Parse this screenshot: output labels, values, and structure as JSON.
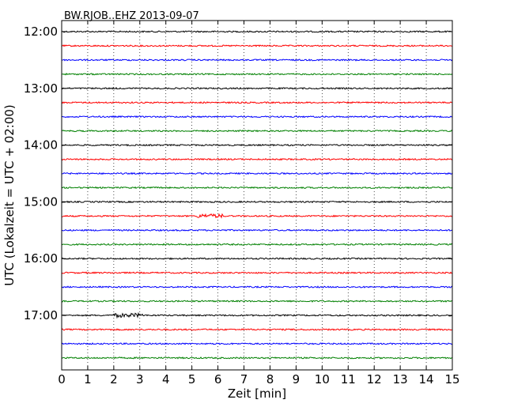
{
  "chart_data": {
    "type": "line",
    "title": "BW.RJOB..EHZ 2013-09-07",
    "xlabel": "Zeit  [min]",
    "ylabel": "UTC (Lokalzeit = UTC + 02:00)",
    "xlim": [
      0,
      15
    ],
    "x_ticks": [
      0,
      1,
      2,
      3,
      4,
      5,
      6,
      7,
      8,
      9,
      10,
      11,
      12,
      13,
      14,
      15
    ],
    "x_tick_labels": [
      "0",
      "1",
      "2",
      "3",
      "4",
      "5",
      "6",
      "7",
      "8",
      "9",
      "10",
      "11",
      "12",
      "13",
      "14",
      "15"
    ],
    "y_tick_labels": [
      "12:00",
      "13:00",
      "14:00",
      "15:00",
      "16:00",
      "17:00"
    ],
    "trace_interval_min": 15,
    "time_range": [
      "12:00",
      "18:00"
    ],
    "grid": "vertical dotted lines at each minute",
    "colors": [
      "#000000",
      "#ff0000",
      "#0000ff",
      "#008000"
    ],
    "traces": [
      {
        "start": "12:00",
        "color": "#000000"
      },
      {
        "start": "12:15",
        "color": "#ff0000"
      },
      {
        "start": "12:30",
        "color": "#0000ff"
      },
      {
        "start": "12:45",
        "color": "#008000"
      },
      {
        "start": "13:00",
        "color": "#000000"
      },
      {
        "start": "13:15",
        "color": "#ff0000"
      },
      {
        "start": "13:30",
        "color": "#0000ff"
      },
      {
        "start": "13:45",
        "color": "#008000"
      },
      {
        "start": "14:00",
        "color": "#000000"
      },
      {
        "start": "14:15",
        "color": "#ff0000"
      },
      {
        "start": "14:30",
        "color": "#0000ff"
      },
      {
        "start": "14:45",
        "color": "#008000"
      },
      {
        "start": "15:00",
        "color": "#000000"
      },
      {
        "start": "15:15",
        "color": "#ff0000",
        "event": {
          "x_start": 5.2,
          "x_end": 6.2
        }
      },
      {
        "start": "15:30",
        "color": "#0000ff"
      },
      {
        "start": "15:45",
        "color": "#008000"
      },
      {
        "start": "16:00",
        "color": "#000000"
      },
      {
        "start": "16:15",
        "color": "#ff0000"
      },
      {
        "start": "16:30",
        "color": "#0000ff"
      },
      {
        "start": "16:45",
        "color": "#008000"
      },
      {
        "start": "17:00",
        "color": "#000000",
        "event": {
          "x_start": 2.0,
          "x_end": 3.1
        }
      },
      {
        "start": "17:15",
        "color": "#ff0000"
      },
      {
        "start": "17:30",
        "color": "#0000ff"
      },
      {
        "start": "17:45",
        "color": "#008000"
      }
    ]
  }
}
